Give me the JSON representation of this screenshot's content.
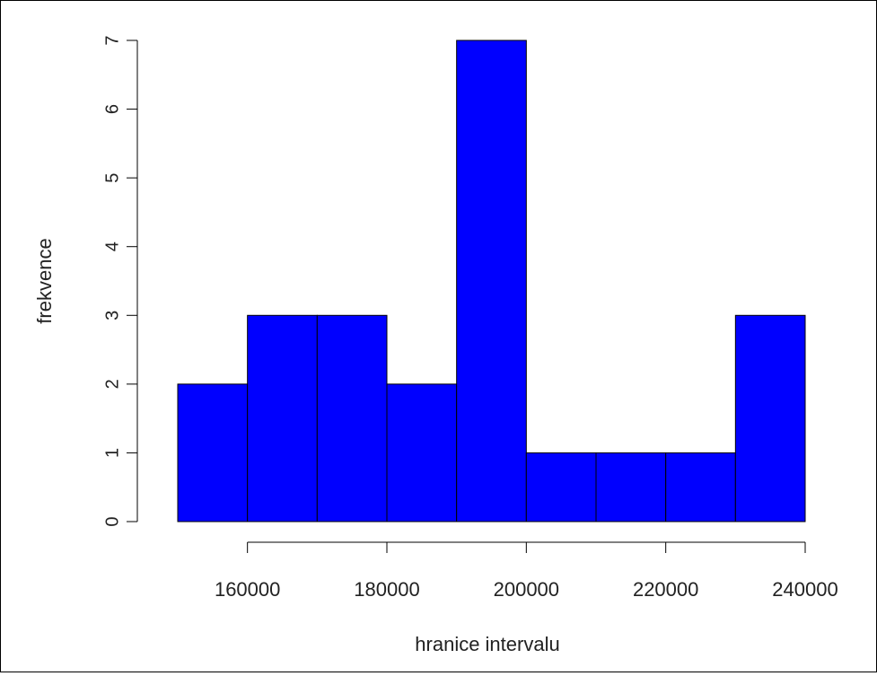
{
  "chart_data": {
    "type": "bar",
    "title": "",
    "xlabel": "hranice intervalu",
    "ylabel": "frekvence",
    "bins": [
      {
        "from": 150000,
        "to": 160000,
        "value": 2
      },
      {
        "from": 160000,
        "to": 170000,
        "value": 3
      },
      {
        "from": 170000,
        "to": 180000,
        "value": 3
      },
      {
        "from": 180000,
        "to": 190000,
        "value": 2
      },
      {
        "from": 190000,
        "to": 200000,
        "value": 7
      },
      {
        "from": 200000,
        "to": 210000,
        "value": 1
      },
      {
        "from": 210000,
        "to": 220000,
        "value": 1
      },
      {
        "from": 220000,
        "to": 230000,
        "value": 1
      },
      {
        "from": 230000,
        "to": 240000,
        "value": 3
      }
    ],
    "xlim": [
      150000,
      240000
    ],
    "ylim": [
      0,
      7
    ],
    "xticks": [
      160000,
      180000,
      200000,
      220000,
      240000
    ],
    "xtick_labels": [
      "160000",
      "180000",
      "200000",
      "220000",
      "240000"
    ],
    "yticks": [
      0,
      1,
      2,
      3,
      4,
      5,
      6,
      7
    ],
    "ytick_labels": [
      "0",
      "1",
      "2",
      "3",
      "4",
      "5",
      "6",
      "7"
    ],
    "bar_color": "#0000ff",
    "grid": false,
    "legend": "none"
  }
}
